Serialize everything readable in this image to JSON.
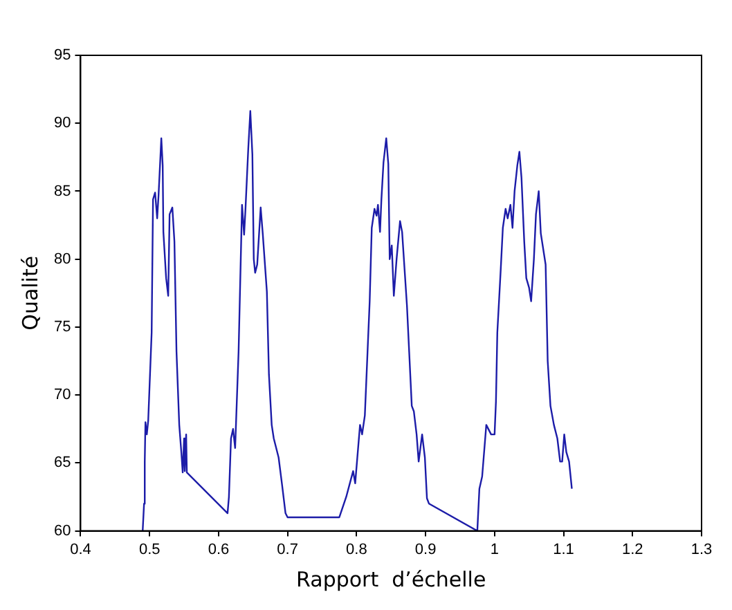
{
  "chart_data": {
    "type": "line",
    "xlabel": "Rapport  d’échelle",
    "ylabel": "Qualité",
    "x": [
      0.49,
      0.492,
      0.493,
      0.494,
      0.496,
      0.498,
      0.503,
      0.505,
      0.508,
      0.511,
      0.513,
      0.517,
      0.519,
      0.52,
      0.524,
      0.527,
      0.529,
      0.533,
      0.536,
      0.539,
      0.543,
      0.546,
      0.548,
      0.55,
      0.551,
      0.553,
      0.554,
      0.613,
      0.615,
      0.618,
      0.621,
      0.624,
      0.629,
      0.634,
      0.637,
      0.639,
      0.643,
      0.646,
      0.649,
      0.651,
      0.653,
      0.656,
      0.661,
      0.664,
      0.67,
      0.673,
      0.677,
      0.68,
      0.687,
      0.692,
      0.697,
      0.7,
      0.775,
      0.785,
      0.795,
      0.798,
      0.805,
      0.808,
      0.812,
      0.819,
      0.822,
      0.826,
      0.829,
      0.831,
      0.834,
      0.836,
      0.839,
      0.843,
      0.846,
      0.848,
      0.851,
      0.854,
      0.858,
      0.863,
      0.866,
      0.873,
      0.88,
      0.883,
      0.887,
      0.89,
      0.895,
      0.899,
      0.902,
      0.905,
      0.975,
      0.978,
      0.982,
      0.988,
      0.995,
      1.0,
      1.002,
      1.004,
      1.009,
      1.012,
      1.016,
      1.019,
      1.023,
      1.026,
      1.029,
      1.033,
      1.036,
      1.039,
      1.043,
      1.046,
      1.05,
      1.053,
      1.057,
      1.06,
      1.064,
      1.067,
      1.074,
      1.077,
      1.081,
      1.086,
      1.091,
      1.095,
      1.098,
      1.101,
      1.104,
      1.108,
      1.112
    ],
    "values": [
      60,
      62,
      65.1,
      68,
      67.1,
      68.1,
      74.6,
      84.4,
      84.9,
      83,
      84.7,
      88.9,
      86.9,
      82,
      78.6,
      77.3,
      83.3,
      83.8,
      81.3,
      73.2,
      67.8,
      65.8,
      64.3,
      66.8,
      64.4,
      67.1,
      64.3,
      61.3,
      62.5,
      66.8,
      67.5,
      66.1,
      73.2,
      84,
      81.8,
      83.7,
      88.1,
      90.9,
      87.7,
      80,
      79,
      79.6,
      83.8,
      81.9,
      77.6,
      71.5,
      67.8,
      66.8,
      65.4,
      63.4,
      61.3,
      61,
      61,
      62.5,
      64.4,
      63.5,
      67.8,
      67.1,
      68.5,
      76.9,
      82.3,
      83.7,
      83.2,
      84,
      82,
      84.4,
      87.1,
      88.9,
      87,
      80,
      81,
      77.3,
      80,
      82.8,
      82,
      76.6,
      69.2,
      68.8,
      67.1,
      65.1,
      67.1,
      65.4,
      62.4,
      62,
      60,
      63.1,
      64,
      67.8,
      67.1,
      67.1,
      69.5,
      74.6,
      79.3,
      82.3,
      83.7,
      83,
      84,
      82.3,
      85,
      86.9,
      87.9,
      86,
      81.3,
      78.6,
      77.9,
      76.9,
      80,
      83.3,
      85,
      81.9,
      79.6,
      72.5,
      69.2,
      67.8,
      66.8,
      65.1,
      65.1,
      67.1,
      65.8,
      65.1,
      63.1
    ],
    "color": "#1c1ca8",
    "xlim": [
      0.4,
      1.3
    ],
    "xticks": [
      0.4,
      0.5,
      0.6,
      0.7,
      0.8,
      0.9,
      1,
      1.1,
      1.2,
      1.3
    ],
    "ylim": [
      60,
      95
    ],
    "yticks": [
      60,
      65,
      70,
      75,
      80,
      85,
      90,
      95
    ],
    "grid": false,
    "legend": false,
    "marker": "none",
    "line_style": "solid"
  }
}
